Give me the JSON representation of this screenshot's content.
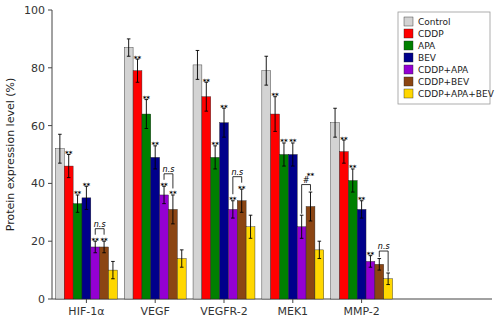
{
  "chart_data": {
    "type": "bar",
    "y_label": "Protein expression level (%)",
    "categories": [
      "HIF-1α",
      "VEGF",
      "VEGFR-2",
      "MEK1",
      "MMP-2"
    ],
    "series": [
      {
        "name": "Control",
        "color": "#d3d3d3",
        "values": [
          52,
          87,
          81,
          79,
          61
        ],
        "errors": [
          5,
          3,
          5,
          5,
          5
        ]
      },
      {
        "name": "CDDP",
        "color": "#ff0000",
        "values": [
          46,
          79,
          70,
          64,
          51
        ],
        "errors": [
          4,
          4,
          5,
          6,
          4
        ]
      },
      {
        "name": "APA",
        "color": "#008000",
        "values": [
          33,
          64,
          49,
          50,
          41
        ],
        "errors": [
          3,
          5,
          4,
          4,
          4
        ]
      },
      {
        "name": "BEV",
        "color": "#00008b",
        "values": [
          35,
          49,
          61,
          50,
          31
        ],
        "errors": [
          4,
          4,
          5,
          4,
          3
        ]
      },
      {
        "name": "CDDP+APA",
        "color": "#9400d3",
        "values": [
          18,
          36,
          31,
          25,
          13
        ],
        "errors": [
          2,
          3,
          3,
          4,
          2
        ]
      },
      {
        "name": "CDDP+BEV",
        "color": "#8b4513",
        "values": [
          18,
          31,
          34,
          32,
          12
        ],
        "errors": [
          2,
          5,
          4,
          5,
          2
        ]
      },
      {
        "name": "CDDP+APA+BEV",
        "color": "#ffd700",
        "values": [
          10,
          14,
          25,
          17,
          7
        ],
        "errors": [
          3,
          3,
          4,
          3,
          2
        ]
      }
    ],
    "ylim": [
      0,
      100
    ],
    "yticks": [
      0,
      20,
      40,
      60,
      80,
      100
    ],
    "grid": false,
    "legend": "upper right",
    "annotations": [
      {
        "text": "**",
        "category": "HIF-1α",
        "series": "CDDP"
      },
      {
        "text": "**",
        "category": "HIF-1α",
        "series": "APA"
      },
      {
        "text": "**",
        "category": "HIF-1α",
        "series": "BEV"
      },
      {
        "text": "**",
        "category": "HIF-1α",
        "series": "CDDP+APA"
      },
      {
        "text": "**",
        "category": "HIF-1α",
        "series": "CDDP+BEV"
      },
      {
        "text": "n.s",
        "category": "HIF-1α",
        "series": [
          "CDDP+APA",
          "CDDP+BEV"
        ]
      },
      {
        "text": "**",
        "category": "VEGF",
        "series": "CDDP"
      },
      {
        "text": "**",
        "category": "VEGF",
        "series": "APA"
      },
      {
        "text": "**",
        "category": "VEGF",
        "series": "BEV"
      },
      {
        "text": "**",
        "category": "VEGF",
        "series": "CDDP+APA"
      },
      {
        "text": "**",
        "category": "VEGF",
        "series": "CDDP+BEV"
      },
      {
        "text": "n.s",
        "category": "VEGF",
        "series": [
          "CDDP+APA",
          "CDDP+BEV"
        ]
      },
      {
        "text": "**",
        "category": "VEGFR-2",
        "series": "CDDP"
      },
      {
        "text": "**",
        "category": "VEGFR-2",
        "series": "APA"
      },
      {
        "text": "**",
        "category": "VEGFR-2",
        "series": "BEV"
      },
      {
        "text": "**",
        "category": "VEGFR-2",
        "series": "CDDP+APA"
      },
      {
        "text": "**",
        "category": "VEGFR-2",
        "series": "CDDP+BEV"
      },
      {
        "text": "n.s",
        "category": "VEGFR-2",
        "series": [
          "CDDP+APA",
          "CDDP+BEV"
        ]
      },
      {
        "text": "**",
        "category": "MEK1",
        "series": "CDDP"
      },
      {
        "text": "**",
        "category": "MEK1",
        "series": "APA"
      },
      {
        "text": "**",
        "category": "MEK1",
        "series": "BEV"
      },
      {
        "text": "#",
        "category": "MEK1",
        "series": [
          "CDDP+APA",
          "CDDP+BEV"
        ]
      },
      {
        "text": "**",
        "category": "MEK1",
        "series": "CDDP+BEV"
      },
      {
        "text": "**",
        "category": "MMP-2",
        "series": "CDDP"
      },
      {
        "text": "**",
        "category": "MMP-2",
        "series": "APA"
      },
      {
        "text": "**",
        "category": "MMP-2",
        "series": "BEV"
      },
      {
        "text": "**",
        "category": "MMP-2",
        "series": "CDDP+APA"
      },
      {
        "text": "n.s",
        "category": "MMP-2",
        "series": [
          "CDDP+BEV",
          "CDDP+APA+BEV"
        ]
      }
    ]
  }
}
